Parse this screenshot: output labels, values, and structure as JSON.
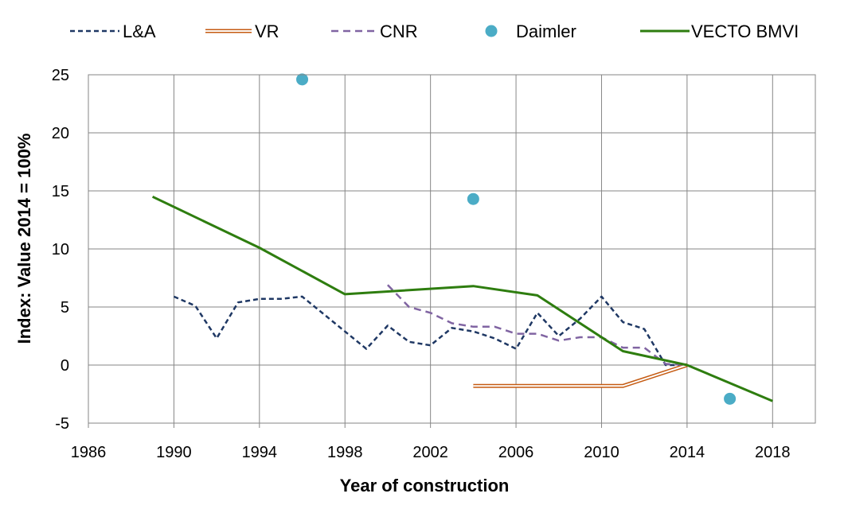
{
  "chart_data": {
    "type": "line",
    "title": "",
    "xlabel": "Year of construction",
    "ylabel": "Index: Value 2014 = 100%",
    "xlim": [
      1986,
      2020
    ],
    "ylim": [
      -5,
      25
    ],
    "xticks": [
      1986,
      1990,
      1994,
      1998,
      2002,
      2006,
      2010,
      2014,
      2018
    ],
    "yticks": [
      -5,
      0,
      5,
      10,
      15,
      20,
      25
    ],
    "grid": true,
    "legend_position": "top",
    "series": [
      {
        "name": "L&A",
        "color": "#1F3864",
        "style": "dashed",
        "points": [
          [
            1990,
            5.9
          ],
          [
            1991,
            5.1
          ],
          [
            1992,
            2.3
          ],
          [
            1993,
            5.4
          ],
          [
            1994,
            5.7
          ],
          [
            1995,
            5.7
          ],
          [
            1996,
            5.9
          ],
          [
            1997,
            4.4
          ],
          [
            1998,
            2.9
          ],
          [
            1999,
            1.4
          ],
          [
            2000,
            3.4
          ],
          [
            2001,
            2.0
          ],
          [
            2002,
            1.7
          ],
          [
            2003,
            3.2
          ],
          [
            2004,
            2.9
          ],
          [
            2005,
            2.3
          ],
          [
            2006,
            1.4
          ],
          [
            2007,
            4.5
          ],
          [
            2008,
            2.5
          ],
          [
            2009,
            4.0
          ],
          [
            2010,
            5.9
          ],
          [
            2011,
            3.7
          ],
          [
            2012,
            3.1
          ],
          [
            2013,
            0.0
          ],
          [
            2014,
            0.0
          ]
        ]
      },
      {
        "name": "VR",
        "color": "#C55A11",
        "style": "double",
        "points": [
          [
            2004,
            -1.8
          ],
          [
            2011,
            -1.8
          ],
          [
            2014,
            0.0
          ]
        ]
      },
      {
        "name": "CNR",
        "color": "#8064A2",
        "style": "dashed",
        "points": [
          [
            2000,
            6.9
          ],
          [
            2001,
            5.0
          ],
          [
            2002,
            4.5
          ],
          [
            2003,
            3.6
          ],
          [
            2004,
            3.3
          ],
          [
            2005,
            3.3
          ],
          [
            2006,
            2.7
          ],
          [
            2007,
            2.7
          ],
          [
            2008,
            2.1
          ],
          [
            2009,
            2.4
          ],
          [
            2010,
            2.4
          ],
          [
            2011,
            1.5
          ],
          [
            2012,
            1.5
          ],
          [
            2013,
            0.1
          ],
          [
            2014,
            0.0
          ]
        ]
      },
      {
        "name": "Daimler",
        "color": "#4BACC6",
        "style": "markers",
        "points": [
          [
            1996,
            24.6
          ],
          [
            2004,
            14.3
          ],
          [
            2016,
            -2.9
          ]
        ]
      },
      {
        "name": "VECTO BMVI",
        "color": "#2E7D0F",
        "style": "solid",
        "points": [
          [
            1989,
            14.5
          ],
          [
            1994,
            10.1
          ],
          [
            1998,
            6.1
          ],
          [
            2004,
            6.8
          ],
          [
            2007,
            6.0
          ],
          [
            2011,
            1.2
          ],
          [
            2014,
            0.0
          ],
          [
            2018,
            -3.1
          ]
        ]
      }
    ]
  }
}
